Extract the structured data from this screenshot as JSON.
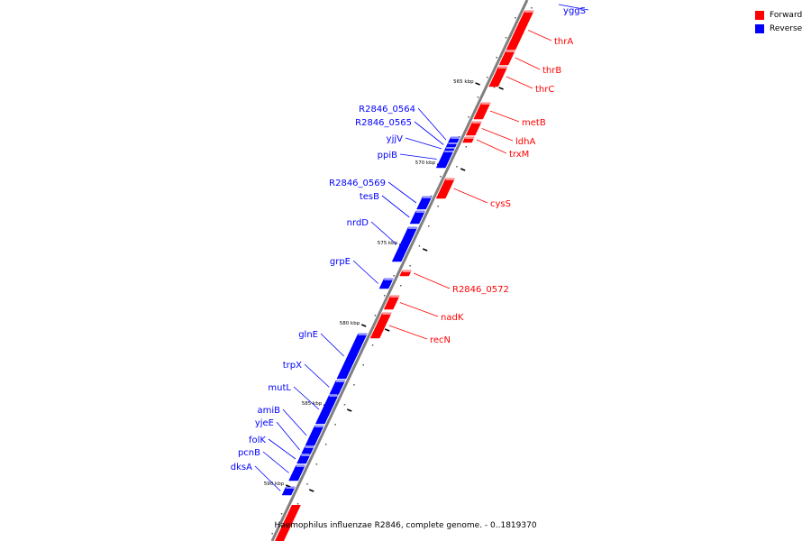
{
  "legend": {
    "forward_label": "Forward",
    "reverse_label": "Reverse",
    "forward_color": "#ff0000",
    "reverse_color": "#0000ff"
  },
  "caption": "Haemophilus influenzae R2846, complete genome. - 0..1819370",
  "axis": {
    "color": "#808080",
    "ticks_kbp": [
      "565 kbp",
      "570 kbp",
      "575 kbp",
      "580 kbp",
      "585 kbp",
      "590 kbp"
    ]
  },
  "genes": {
    "forward": [
      "thrA",
      "thrB",
      "thrC",
      "metB",
      "ldhA",
      "trxM",
      "cysS",
      "R2846_0572",
      "nadK",
      "recN"
    ],
    "reverse": [
      "yggS",
      "R2846_0564",
      "R2846_0565",
      "yjjV",
      "ppiB",
      "R2846_0569",
      "tesB",
      "nrdD",
      "grpE",
      "glnE",
      "trpX",
      "mutL",
      "amiB",
      "yjeE",
      "folK",
      "pcnB",
      "dksA"
    ]
  }
}
